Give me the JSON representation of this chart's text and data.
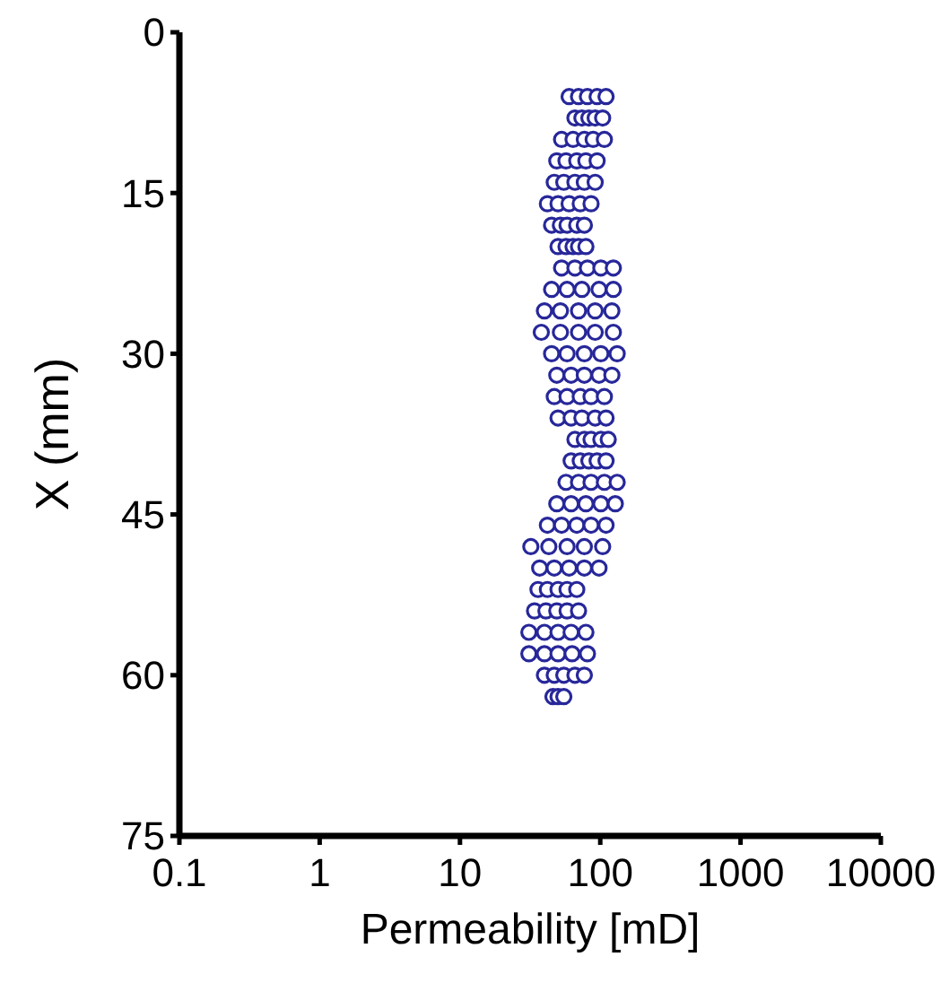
{
  "chart_data": {
    "type": "scatter",
    "xlabel": "Permeability [mD]",
    "ylabel": "X (mm)",
    "log": "x",
    "xlim": [
      0.1,
      10000
    ],
    "xticks": [
      0.1,
      1,
      10,
      100,
      1000,
      10000
    ],
    "ylim": [
      75,
      0
    ],
    "yticks": [
      0,
      15,
      30,
      45,
      60,
      75
    ],
    "marker": "circle",
    "color": "#27279a",
    "x": [
      60,
      70,
      81,
      95,
      110,
      66,
      74,
      83,
      92,
      104,
      53,
      64,
      77,
      89,
      107,
      49,
      57,
      68,
      79,
      95,
      47,
      55,
      66,
      77,
      92,
      42,
      50,
      60,
      72,
      86,
      45,
      52,
      58,
      68,
      77,
      50,
      57,
      64,
      70,
      79,
      53,
      66,
      81,
      101,
      124,
      45,
      58,
      74,
      98,
      124,
      40,
      52,
      70,
      92,
      121,
      38,
      52,
      70,
      92,
      124,
      45,
      58,
      77,
      101,
      132,
      49,
      62,
      77,
      98,
      121,
      47,
      58,
      72,
      86,
      107,
      50,
      62,
      74,
      92,
      110,
      66,
      77,
      86,
      101,
      114,
      62,
      72,
      83,
      95,
      110,
      57,
      70,
      86,
      107,
      132,
      49,
      62,
      79,
      101,
      128,
      42,
      53,
      68,
      86,
      110,
      32,
      43,
      58,
      77,
      104,
      37,
      47,
      60,
      77,
      98,
      36,
      42,
      50,
      58,
      68,
      34,
      41,
      49,
      58,
      70,
      31,
      40,
      50,
      62,
      79,
      31,
      40,
      50,
      63,
      81,
      40,
      47,
      55,
      66,
      77,
      46,
      50,
      55
    ],
    "values": [
      6,
      6,
      6,
      6,
      6,
      8,
      8,
      8,
      8,
      8,
      10,
      10,
      10,
      10,
      10,
      12,
      12,
      12,
      12,
      12,
      14,
      14,
      14,
      14,
      14,
      16,
      16,
      16,
      16,
      16,
      18,
      18,
      18,
      18,
      18,
      20,
      20,
      20,
      20,
      20,
      22,
      22,
      22,
      22,
      22,
      24,
      24,
      24,
      24,
      24,
      26,
      26,
      26,
      26,
      26,
      28,
      28,
      28,
      28,
      28,
      30,
      30,
      30,
      30,
      30,
      32,
      32,
      32,
      32,
      32,
      34,
      34,
      34,
      34,
      34,
      36,
      36,
      36,
      36,
      36,
      38,
      38,
      38,
      38,
      38,
      40,
      40,
      40,
      40,
      40,
      42,
      42,
      42,
      42,
      42,
      44,
      44,
      44,
      44,
      44,
      46,
      46,
      46,
      46,
      46,
      48,
      48,
      48,
      48,
      48,
      50,
      50,
      50,
      50,
      50,
      52,
      52,
      52,
      52,
      52,
      54,
      54,
      54,
      54,
      54,
      56,
      56,
      56,
      56,
      56,
      58,
      58,
      58,
      58,
      58,
      60,
      60,
      60,
      60,
      60,
      62,
      62,
      62
    ]
  }
}
